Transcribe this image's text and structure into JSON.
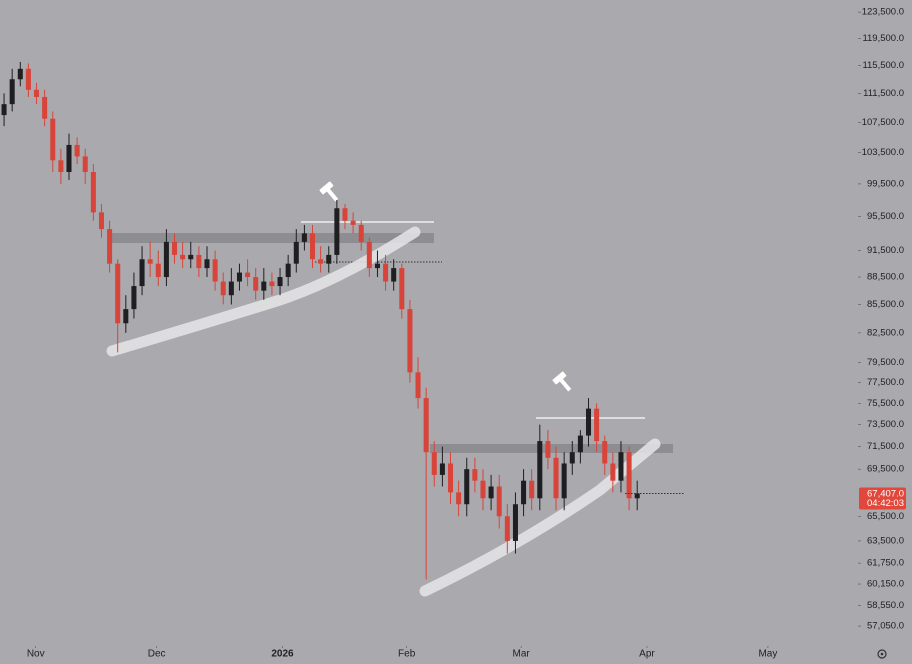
{
  "chart_data": {
    "type": "candlestick",
    "log_scale": true,
    "up_color": "#1f1f22",
    "down_color": "#d8443a",
    "xlim": [
      0,
      105.7
    ],
    "ylim": [
      56060,
      125400
    ],
    "xticks": [
      {
        "value": 4.4,
        "label": "Nov"
      },
      {
        "value": 19.3,
        "label": "Dec"
      },
      {
        "value": 34.8,
        "label": "2026"
      },
      {
        "value": 50.1,
        "label": "Feb"
      },
      {
        "value": 64.2,
        "label": "Mar"
      },
      {
        "value": 79.7,
        "label": "Apr"
      },
      {
        "value": 94.6,
        "label": "May"
      }
    ],
    "yticks": [
      {
        "value": 123500,
        "label": "123,500.0"
      },
      {
        "value": 119500,
        "label": "119,500.0"
      },
      {
        "value": 115500,
        "label": "115,500.0"
      },
      {
        "value": 111500,
        "label": "111,500.0"
      },
      {
        "value": 107500,
        "label": "107,500.0"
      },
      {
        "value": 103500,
        "label": "103,500.0"
      },
      {
        "value": 99500,
        "label": "99,500.0"
      },
      {
        "value": 95500,
        "label": "95,500.0"
      },
      {
        "value": 91500,
        "label": "91,500.0"
      },
      {
        "value": 88500,
        "label": "88,500.0"
      },
      {
        "value": 85500,
        "label": "85,500.0"
      },
      {
        "value": 82500,
        "label": "82,500.0"
      },
      {
        "value": 79500,
        "label": "79,500.0"
      },
      {
        "value": 77500,
        "label": "77,500.0"
      },
      {
        "value": 75500,
        "label": "75,500.0"
      },
      {
        "value": 73500,
        "label": "73,500.0"
      },
      {
        "value": 71500,
        "label": "71,500.0"
      },
      {
        "value": 69500,
        "label": "69,500.0"
      },
      {
        "value": 65500,
        "label": "65,500.0"
      },
      {
        "value": 63500,
        "label": "63,500.0"
      },
      {
        "value": 61750,
        "label": "61,750.0"
      },
      {
        "value": 60150,
        "label": "60,150.0"
      },
      {
        "value": 58550,
        "label": "58,550.0"
      },
      {
        "value": 57050,
        "label": "57,050.0"
      }
    ],
    "last_price": {
      "value": 67407,
      "label": "67,407.0"
    },
    "countdown": "04:42:03",
    "series": {
      "open": [
        108500,
        110000,
        113500,
        115000,
        112000,
        111000,
        108000,
        102500,
        101000,
        104500,
        103000,
        101000,
        96000,
        94000,
        90000,
        83500,
        85000,
        87500,
        90500,
        90000,
        88500,
        92500,
        91000,
        90500,
        91000,
        89500,
        90500,
        88000,
        86500,
        88000,
        89000,
        88500,
        87000,
        88000,
        87500,
        88500,
        90000,
        92500,
        93500,
        90500,
        90000,
        91000,
        96500,
        95000,
        94500,
        92500,
        89500,
        90000,
        88000,
        89500,
        85000,
        78500,
        76000,
        71000,
        69000,
        70000,
        67500,
        66500,
        69500,
        68500,
        67000,
        68000,
        65500,
        63500,
        66500,
        68500,
        67000,
        72000,
        70500,
        67000,
        70000,
        71000,
        72500,
        75000,
        72000,
        70000,
        68500,
        71000,
        67000
      ],
      "high": [
        111500,
        115000,
        116000,
        115800,
        113000,
        112000,
        109000,
        104000,
        106000,
        105500,
        104000,
        102000,
        97000,
        95000,
        90500,
        86500,
        89000,
        92000,
        92500,
        91500,
        94000,
        93500,
        92500,
        92500,
        92000,
        92000,
        91500,
        89000,
        89500,
        90000,
        90500,
        89500,
        89500,
        89000,
        89500,
        91000,
        94000,
        94500,
        94500,
        92000,
        92000,
        97500,
        97000,
        96000,
        95000,
        93000,
        91500,
        91000,
        90500,
        90000,
        86000,
        80000,
        77000,
        72000,
        71500,
        71000,
        68500,
        70500,
        70500,
        69500,
        69000,
        69000,
        66500,
        67500,
        69500,
        69500,
        73500,
        73000,
        71500,
        71000,
        72000,
        73000,
        76000,
        75500,
        72500,
        71000,
        72000,
        71500,
        68500
      ],
      "low": [
        107000,
        109000,
        112500,
        111000,
        110000,
        107000,
        101000,
        99500,
        100000,
        102000,
        99500,
        95000,
        93000,
        89000,
        80500,
        82500,
        84000,
        86500,
        88500,
        87500,
        87500,
        90000,
        89500,
        89500,
        88500,
        88500,
        87000,
        85500,
        85500,
        87000,
        87500,
        86000,
        86000,
        86500,
        86500,
        87500,
        89000,
        91500,
        89500,
        89000,
        89000,
        90000,
        94000,
        93500,
        91500,
        88500,
        88500,
        87000,
        87000,
        84000,
        77500,
        75000,
        60500,
        68000,
        68000,
        66500,
        65500,
        65500,
        67500,
        66000,
        66000,
        64500,
        62500,
        62500,
        65500,
        66000,
        66000,
        69500,
        66000,
        66000,
        69000,
        70000,
        71500,
        71000,
        69000,
        67500,
        67500,
        66000,
        66000
      ],
      "close": [
        110000,
        113500,
        115000,
        112000,
        111000,
        108000,
        102500,
        101000,
        104500,
        103000,
        101000,
        96000,
        94000,
        90000,
        83500,
        85000,
        87500,
        90500,
        90000,
        88500,
        92500,
        91000,
        90500,
        91000,
        89500,
        90500,
        88000,
        86500,
        88000,
        89000,
        88500,
        87000,
        88000,
        87500,
        88500,
        90000,
        92500,
        93500,
        90500,
        90000,
        91000,
        96500,
        95000,
        94500,
        92500,
        89500,
        90000,
        88000,
        89500,
        85000,
        78500,
        76000,
        71000,
        69000,
        70000,
        67500,
        66500,
        69500,
        68500,
        67000,
        68000,
        65500,
        63500,
        66500,
        68500,
        67000,
        72000,
        70500,
        67000,
        70000,
        71000,
        72500,
        75000,
        72000,
        70000,
        68500,
        71000,
        67000,
        67407
      ]
    }
  }
}
